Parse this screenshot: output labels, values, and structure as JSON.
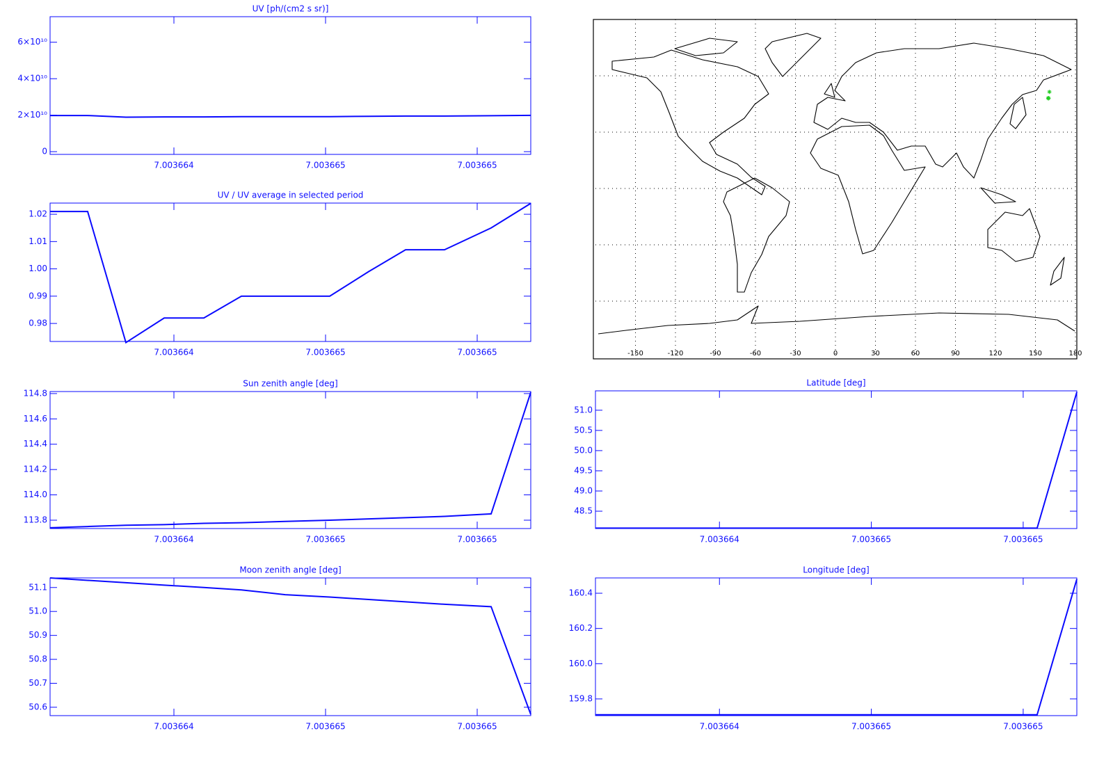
{
  "chart_data": [
    {
      "type": "line",
      "title": "UV [ph/(cm2 s sr)]",
      "color": "#0a0aff",
      "x": [
        7.0036635917,
        7.0036637156,
        7.0036638417,
        7.0036639679,
        7.0036640986,
        7.0036642225,
        7.003664367,
        7.0036645138,
        7.0036646422,
        7.0036647638,
        7.0036648922,
        7.0036650459,
        7.0036651766
      ],
      "values": [
        19800000000,
        19800000000,
        18900000000,
        19050000000,
        19050000000,
        19200000000,
        19200000000,
        19200000000,
        19400000000,
        19500000000,
        19500000000,
        19700000000,
        19900000000
      ],
      "xlim": [
        7.0036635917,
        7.0036651766
      ],
      "ylim": [
        -1500000000,
        74000000000
      ],
      "xticks": [
        {
          "value": 7.003664,
          "label": "7.003664"
        },
        {
          "value": 7.0036645,
          "label": "7.003665"
        },
        {
          "value": 7.003665,
          "label": "7.003665"
        }
      ],
      "yticks": [
        0,
        {
          "value": 20000000000,
          "label": "2×10¹⁰"
        },
        {
          "value": 40000000000,
          "label": "4×10¹⁰"
        },
        {
          "value": 60000000000,
          "label": "6×10¹⁰"
        }
      ]
    },
    {
      "type": "line",
      "title": "UV / UV average in selected period",
      "color": "#0a0aff",
      "x": [
        7.0036635917,
        7.0036637156,
        7.0036638417,
        7.0036639679,
        7.0036640986,
        7.0036642225,
        7.003664367,
        7.0036645138,
        7.0036646422,
        7.0036647638,
        7.0036648922,
        7.0036650459,
        7.0036651766
      ],
      "values": [
        1.021,
        1.021,
        0.973,
        0.982,
        0.982,
        0.99,
        0.99,
        0.99,
        0.999,
        1.007,
        1.007,
        1.015,
        1.024
      ],
      "xlim": [
        7.0036635917,
        7.0036651766
      ],
      "ylim": [
        0.9734,
        1.0241
      ],
      "xticks": [
        {
          "value": 7.003664,
          "label": "7.003664"
        },
        {
          "value": 7.0036645,
          "label": "7.003665"
        },
        {
          "value": 7.003665,
          "label": "7.003665"
        }
      ],
      "yticks": [
        0.98,
        0.99,
        {
          "value": 1.0,
          "label": "1.00"
        },
        1.01,
        1.02
      ]
    },
    {
      "type": "line",
      "title": "Sun zenith angle [deg]",
      "color": "#0a0aff",
      "x": [
        7.0036635917,
        7.0036637156,
        7.0036638417,
        7.0036639679,
        7.0036640986,
        7.0036642225,
        7.003664367,
        7.0036645138,
        7.0036646422,
        7.0036647638,
        7.0036648922,
        7.0036650459,
        7.0036651766
      ],
      "values": [
        113.74,
        113.75,
        113.76,
        113.765,
        113.775,
        113.78,
        113.79,
        113.8,
        113.81,
        113.82,
        113.83,
        113.85,
        114.81
      ],
      "xlim": [
        7.0036635917,
        7.0036651766
      ],
      "ylim": [
        113.734,
        114.816
      ],
      "xticks": [
        {
          "value": 7.003664,
          "label": "7.003664"
        },
        {
          "value": 7.0036645,
          "label": "7.003665"
        },
        {
          "value": 7.003665,
          "label": "7.003665"
        }
      ],
      "yticks": [
        113.8,
        {
          "value": 114.0,
          "label": "114.0"
        },
        114.2,
        114.4,
        114.6,
        114.8
      ]
    },
    {
      "type": "line",
      "title": "Moon zenith angle [deg]",
      "color": "#0a0aff",
      "x": [
        7.0036635917,
        7.0036637156,
        7.0036638417,
        7.0036639679,
        7.0036640986,
        7.0036642225,
        7.003664367,
        7.0036645138,
        7.0036646422,
        7.0036647638,
        7.0036648922,
        7.0036650459,
        7.0036651766
      ],
      "values": [
        51.14,
        51.13,
        51.12,
        51.11,
        51.1,
        51.09,
        51.07,
        51.06,
        51.05,
        51.04,
        51.03,
        51.02,
        50.57
      ],
      "xlim": [
        7.0036635917,
        7.0036651766
      ],
      "ylim": [
        50.565,
        51.14
      ],
      "xticks": [
        {
          "value": 7.003664,
          "label": "7.003664"
        },
        {
          "value": 7.0036645,
          "label": "7.003665"
        },
        {
          "value": 7.003665,
          "label": "7.003665"
        }
      ],
      "yticks": [
        50.6,
        50.7,
        50.8,
        50.9,
        {
          "value": 51.0,
          "label": "51.0"
        },
        51.1
      ]
    },
    {
      "type": "map",
      "marker_color": "#22cc22",
      "grid": true,
      "xlim": [
        -180,
        180
      ],
      "ylim": [
        -90,
        90
      ],
      "xticks": [
        -150,
        -120,
        -90,
        -60,
        -30,
        0,
        30,
        60,
        90,
        120,
        150,
        180
      ],
      "yticks": [
        -60,
        -30,
        0,
        30,
        60
      ]
    },
    {
      "type": "line",
      "title": "Latitude [deg]",
      "color": "#0a0aff",
      "x": [
        7.0036635917,
        7.0036637156,
        7.0036638417,
        7.0036639679,
        7.0036640986,
        7.0036642225,
        7.003664367,
        7.0036645138,
        7.0036646422,
        7.0036647638,
        7.0036648922,
        7.0036650459,
        7.0036651766
      ],
      "values": [
        48.08,
        48.08,
        48.08,
        48.08,
        48.08,
        48.08,
        48.08,
        48.08,
        48.08,
        48.08,
        48.08,
        48.08,
        51.45
      ],
      "xlim": [
        7.0036635917,
        7.0036651766
      ],
      "ylim": [
        48.07,
        51.48
      ],
      "xticks": [
        {
          "value": 7.003664,
          "label": "7.003664"
        },
        {
          "value": 7.0036645,
          "label": "7.003665"
        },
        {
          "value": 7.003665,
          "label": "7.003665"
        }
      ],
      "yticks": [
        48.5,
        {
          "value": 49.0,
          "label": "49.0"
        },
        49.5,
        {
          "value": 50.0,
          "label": "50.0"
        },
        50.5,
        {
          "value": 51.0,
          "label": "51.0"
        }
      ]
    },
    {
      "type": "line",
      "title": "Longitude [deg]",
      "color": "#0a0aff",
      "x": [
        7.0036635917,
        7.0036637156,
        7.0036638417,
        7.0036639679,
        7.0036640986,
        7.0036642225,
        7.003664367,
        7.0036645138,
        7.0036646422,
        7.0036647638,
        7.0036648922,
        7.0036650459,
        7.0036651766
      ],
      "values": [
        159.71,
        159.71,
        159.71,
        159.71,
        159.71,
        159.71,
        159.71,
        159.71,
        159.71,
        159.71,
        159.71,
        159.71,
        160.48
      ],
      "xlim": [
        7.0036635917,
        7.0036651766
      ],
      "ylim": [
        159.705,
        160.487
      ],
      "xticks": [
        {
          "value": 7.003664,
          "label": "7.003664"
        },
        {
          "value": 7.0036645,
          "label": "7.003665"
        },
        {
          "value": 7.003665,
          "label": "7.003665"
        }
      ],
      "yticks": [
        159.8,
        {
          "value": 160.0,
          "label": "160.0"
        },
        160.2,
        160.4
      ]
    }
  ]
}
